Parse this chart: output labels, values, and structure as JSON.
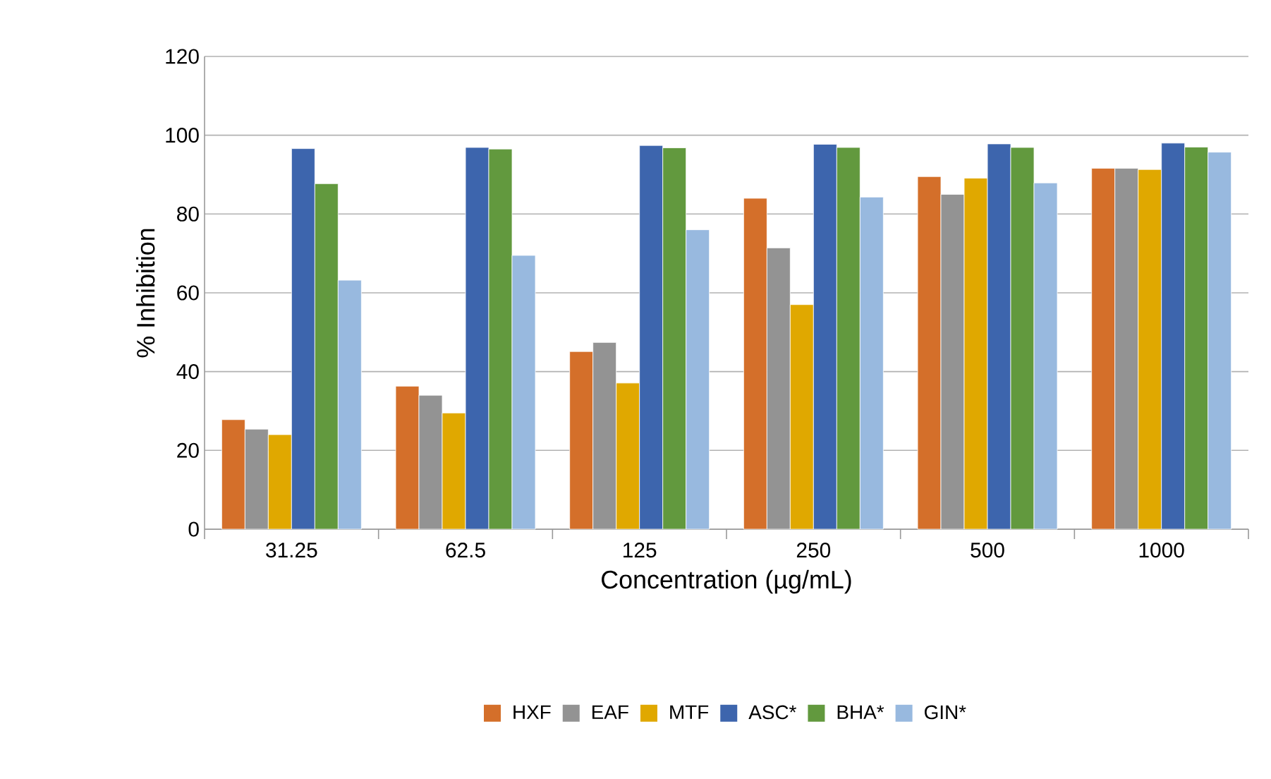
{
  "chart_data": {
    "type": "bar",
    "xlabel": "Concentration (µg/mL)",
    "ylabel": "% Inhibition",
    "categories": [
      "31.25",
      "62.5",
      "125",
      "250",
      "500",
      "1000"
    ],
    "series": [
      {
        "name": "HXF",
        "color": "#d46f2a",
        "values": [
          27.8,
          36.3,
          45.1,
          84.0,
          89.5,
          91.6
        ]
      },
      {
        "name": "EAF",
        "color": "#939393",
        "values": [
          25.4,
          34.0,
          47.4,
          71.4,
          85.0,
          91.6
        ]
      },
      {
        "name": "MTF",
        "color": "#e0a800",
        "values": [
          24.0,
          29.5,
          37.1,
          57.0,
          89.1,
          91.3
        ]
      },
      {
        "name": "ASC*",
        "color": "#3d65ad",
        "values": [
          96.6,
          96.9,
          97.4,
          97.7,
          97.8,
          98.0
        ]
      },
      {
        "name": "BHA*",
        "color": "#62993e",
        "values": [
          87.7,
          96.5,
          96.8,
          96.9,
          96.9,
          97.0
        ]
      },
      {
        "name": "GIN*",
        "color": "#98b9df",
        "values": [
          63.2,
          69.5,
          76.0,
          84.3,
          87.9,
          95.7
        ]
      }
    ],
    "ylim": [
      0,
      120
    ],
    "yticks": [
      0,
      20,
      40,
      60,
      80,
      100,
      120
    ],
    "grid": "y",
    "legend": "bottom"
  }
}
